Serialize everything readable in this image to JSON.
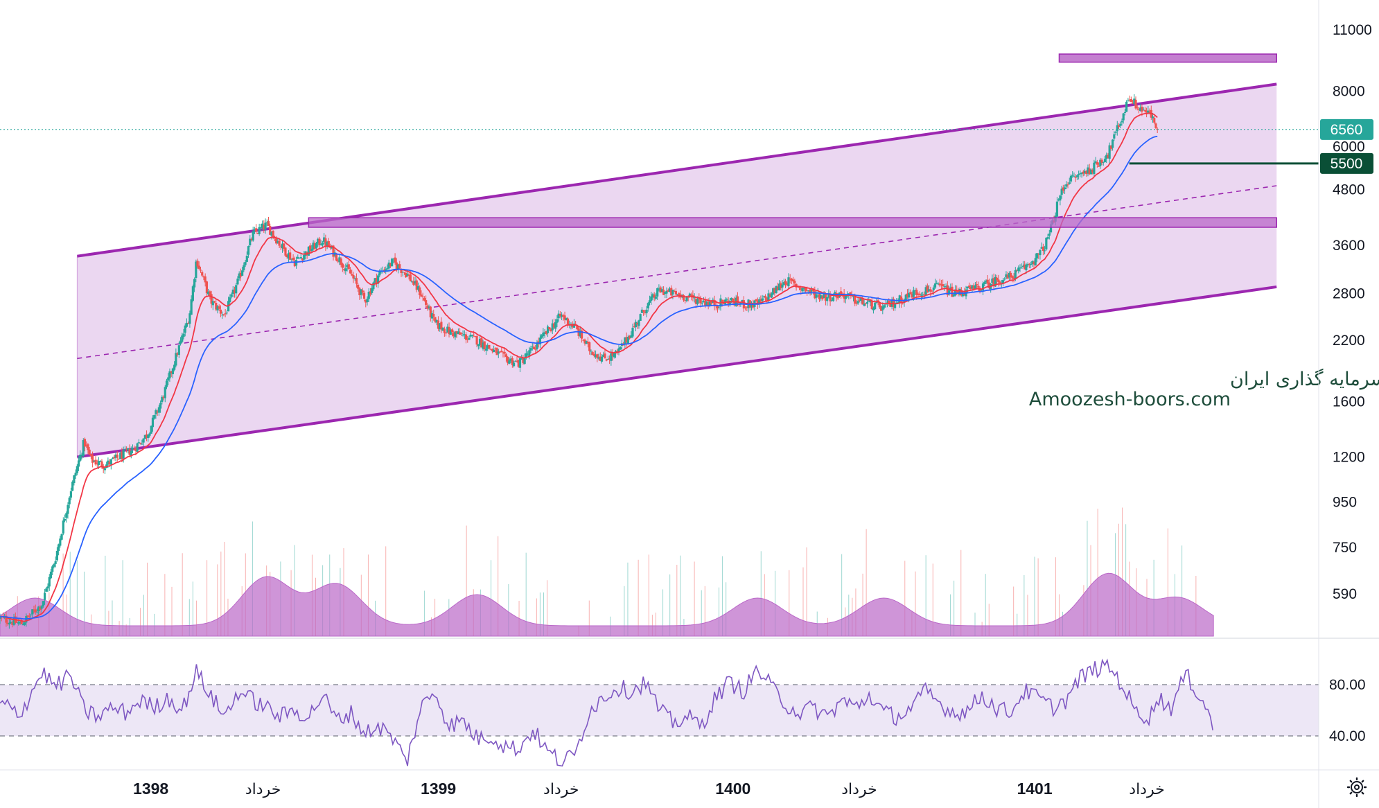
{
  "chart_data": {
    "type": "candlestick",
    "price_scale": "log",
    "y_ticks": [
      "11000",
      "8000",
      "6000",
      "4800",
      "3600",
      "2800",
      "2200",
      "1600",
      "1200",
      "950",
      "750",
      "590"
    ],
    "y_tick_values": [
      11000,
      8000,
      6000,
      4800,
      3600,
      2800,
      2200,
      1600,
      1200,
      950,
      750,
      590
    ],
    "last_price_label": "6560",
    "last_price": 6560,
    "horizontal_level_label": "5500",
    "horizontal_level": 5500,
    "rsi_ticks": [
      "80.00",
      "40.00"
    ],
    "rsi_tick_values": [
      80,
      40
    ],
    "x_labels": [
      {
        "text": "1398",
        "bold": true
      },
      {
        "text": "خرداد",
        "bold": false
      },
      {
        "text": "1399",
        "bold": true
      },
      {
        "text": "خرداد",
        "bold": false
      },
      {
        "text": "1400",
        "bold": true
      },
      {
        "text": "خرداد",
        "bold": false
      },
      {
        "text": "1401",
        "bold": true
      },
      {
        "text": "خرداد",
        "bold": false
      }
    ],
    "price_path": [
      [
        0,
        520
      ],
      [
        3,
        505
      ],
      [
        6,
        560
      ],
      [
        8,
        720
      ],
      [
        10,
        1000
      ],
      [
        12,
        1300
      ],
      [
        13,
        1180
      ],
      [
        15,
        1150
      ],
      [
        17,
        1200
      ],
      [
        19,
        1250
      ],
      [
        21,
        1350
      ],
      [
        23,
        1600
      ],
      [
        25,
        2000
      ],
      [
        27,
        2500
      ],
      [
        28,
        3350
      ],
      [
        30,
        2700
      ],
      [
        32,
        2500
      ],
      [
        34,
        3000
      ],
      [
        36,
        3800
      ],
      [
        38,
        4000
      ],
      [
        40,
        3600
      ],
      [
        42,
        3300
      ],
      [
        44,
        3500
      ],
      [
        46,
        3700
      ],
      [
        48,
        3400
      ],
      [
        50,
        3100
      ],
      [
        52,
        2700
      ],
      [
        54,
        3100
      ],
      [
        56,
        3300
      ],
      [
        58,
        3100
      ],
      [
        60,
        2800
      ],
      [
        62,
        2400
      ],
      [
        64,
        2300
      ],
      [
        66,
        2250
      ],
      [
        68,
        2200
      ],
      [
        70,
        2100
      ],
      [
        72,
        2000
      ],
      [
        74,
        1950
      ],
      [
        76,
        2100
      ],
      [
        78,
        2300
      ],
      [
        80,
        2500
      ],
      [
        82,
        2350
      ],
      [
        84,
        2100
      ],
      [
        86,
        2000
      ],
      [
        88,
        2050
      ],
      [
        90,
        2300
      ],
      [
        92,
        2600
      ],
      [
        94,
        2850
      ],
      [
        96,
        2800
      ],
      [
        98,
        2750
      ],
      [
        100,
        2700
      ],
      [
        102,
        2650
      ],
      [
        104,
        2700
      ],
      [
        106,
        2650
      ],
      [
        108,
        2650
      ],
      [
        110,
        2800
      ],
      [
        112,
        3000
      ],
      [
        114,
        2900
      ],
      [
        116,
        2800
      ],
      [
        118,
        2750
      ],
      [
        120,
        2800
      ],
      [
        122,
        2700
      ],
      [
        124,
        2650
      ],
      [
        126,
        2600
      ],
      [
        128,
        2700
      ],
      [
        130,
        2800
      ],
      [
        132,
        2850
      ],
      [
        134,
        2900
      ],
      [
        136,
        2800
      ],
      [
        138,
        2850
      ],
      [
        140,
        2900
      ],
      [
        142,
        3000
      ],
      [
        144,
        3050
      ],
      [
        146,
        3200
      ],
      [
        148,
        3400
      ],
      [
        149,
        3600
      ],
      [
        150,
        4000
      ],
      [
        151,
        4600
      ],
      [
        152,
        5000
      ],
      [
        154,
        5200
      ],
      [
        156,
        5400
      ],
      [
        158,
        5800
      ],
      [
        159,
        6400
      ],
      [
        160,
        7000
      ],
      [
        161,
        7800
      ],
      [
        162,
        7400
      ],
      [
        164,
        7100
      ],
      [
        165,
        6560
      ]
    ],
    "rsi_path": [
      [
        0,
        65
      ],
      [
        3,
        58
      ],
      [
        6,
        90
      ],
      [
        8,
        78
      ],
      [
        10,
        88
      ],
      [
        12,
        60
      ],
      [
        14,
        55
      ],
      [
        16,
        62
      ],
      [
        18,
        58
      ],
      [
        20,
        68
      ],
      [
        22,
        62
      ],
      [
        24,
        70
      ],
      [
        26,
        60
      ],
      [
        28,
        90
      ],
      [
        30,
        72
      ],
      [
        32,
        55
      ],
      [
        34,
        75
      ],
      [
        36,
        68
      ],
      [
        38,
        62
      ],
      [
        40,
        55
      ],
      [
        42,
        60
      ],
      [
        44,
        55
      ],
      [
        46,
        72
      ],
      [
        48,
        52
      ],
      [
        50,
        58
      ],
      [
        52,
        42
      ],
      [
        54,
        48
      ],
      [
        56,
        38
      ],
      [
        58,
        20
      ],
      [
        60,
        62
      ],
      [
        62,
        75
      ],
      [
        64,
        48
      ],
      [
        66,
        52
      ],
      [
        68,
        38
      ],
      [
        70,
        40
      ],
      [
        72,
        32
      ],
      [
        74,
        30
      ],
      [
        76,
        45
      ],
      [
        78,
        28
      ],
      [
        80,
        20
      ],
      [
        82,
        25
      ],
      [
        84,
        60
      ],
      [
        86,
        70
      ],
      [
        88,
        78
      ],
      [
        90,
        75
      ],
      [
        92,
        82
      ],
      [
        94,
        60
      ],
      [
        96,
        50
      ],
      [
        98,
        55
      ],
      [
        100,
        48
      ],
      [
        102,
        70
      ],
      [
        104,
        82
      ],
      [
        106,
        75
      ],
      [
        108,
        92
      ],
      [
        110,
        78
      ],
      [
        112,
        65
      ],
      [
        114,
        58
      ],
      [
        116,
        62
      ],
      [
        118,
        55
      ],
      [
        120,
        68
      ],
      [
        122,
        62
      ],
      [
        124,
        72
      ],
      [
        126,
        58
      ],
      [
        128,
        55
      ],
      [
        130,
        62
      ],
      [
        132,
        75
      ],
      [
        134,
        65
      ],
      [
        136,
        58
      ],
      [
        138,
        60
      ],
      [
        140,
        72
      ],
      [
        142,
        62
      ],
      [
        144,
        58
      ],
      [
        146,
        75
      ],
      [
        148,
        70
      ],
      [
        150,
        62
      ],
      [
        152,
        68
      ],
      [
        154,
        85
      ],
      [
        156,
        92
      ],
      [
        158,
        95
      ],
      [
        160,
        80
      ],
      [
        162,
        58
      ],
      [
        164,
        55
      ],
      [
        165,
        70
      ],
      [
        167,
        62
      ],
      [
        169,
        88
      ],
      [
        171,
        72
      ],
      [
        172,
        62
      ],
      [
        173,
        45
      ]
    ],
    "channel": {
      "upper": [
        [
          11,
          3400
        ],
        [
          182,
          8300
        ]
      ],
      "lower": [
        [
          11,
          1200
        ],
        [
          182,
          2900
        ]
      ],
      "mid": [
        [
          11,
          2000
        ],
        [
          182,
          4900
        ]
      ]
    },
    "resistance_zone": [
      3950,
      4150
    ],
    "target_zone": [
      9300,
      9700
    ],
    "colors": {
      "up": "#26a69a",
      "down": "#ef5350",
      "channel": "#9c27b0",
      "channel_fill": "#e7d0ee",
      "zone": "#ba68c8",
      "ma_fast": "#f23645",
      "ma_slow": "#2962ff",
      "last_price_tag": "#26a69a",
      "level_tag": "#0a4f36",
      "rsi_line": "#7e57c2",
      "rsi_band": "#ede7f6",
      "volume": "#ba68c8"
    }
  },
  "watermark": {
    "line1": "انجمن خبرگان سرمایه گذاری ایران",
    "line2": "Amoozesh-boors.com"
  },
  "icons": {
    "settings": "gear-icon"
  }
}
